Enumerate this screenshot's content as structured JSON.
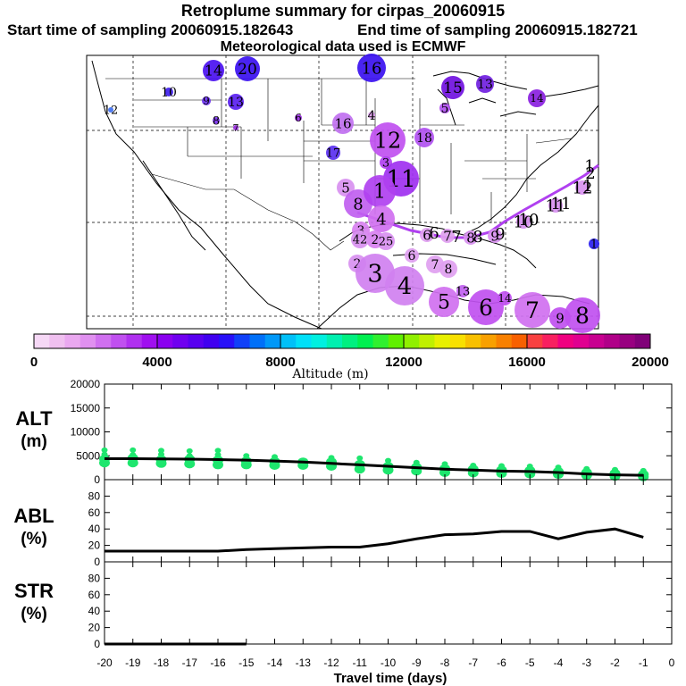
{
  "header": {
    "title": "Retroplume summary for cirpas_20060915",
    "start_label": "Start time of sampling 20060915.182643",
    "end_label": "End time of sampling 20060915.182721",
    "met_label": "Meteorological data used is ECMWF"
  },
  "colorbar": {
    "tick_labels": [
      "0",
      "4000",
      "8000",
      "12000",
      "16000",
      "20000"
    ],
    "title": "Altitude (m)",
    "min": 0,
    "max": 20000,
    "colors": [
      "#f6d8f6",
      "#f0c0f0",
      "#eaa8f0",
      "#e090f0",
      "#d070f0",
      "#c050f0",
      "#b030f0",
      "#a010f0",
      "#8a00f0",
      "#7000f0",
      "#5800f0",
      "#4000f0",
      "#2810f8",
      "#1040f8",
      "#0070f8",
      "#0098f8",
      "#00c0f8",
      "#00e0f8",
      "#00f0e0",
      "#00f0b0",
      "#00f080",
      "#00f050",
      "#30f030",
      "#60f000",
      "#90f000",
      "#c0f000",
      "#e8f000",
      "#f8e000",
      "#f8c000",
      "#f8a000",
      "#f88000",
      "#f86000",
      "#f84040",
      "#f82060",
      "#f00080",
      "#e00090",
      "#c80090",
      "#b00088",
      "#980080",
      "#800078"
    ],
    "color_low": "#f6d8f6",
    "color_mid": "#d070f0",
    "color_high": "#3000f0"
  },
  "map": {
    "plume_labels": [
      {
        "t": "14",
        "c": "#4a10f0"
      },
      {
        "t": "20",
        "c": "#3a10f0"
      },
      {
        "t": "16",
        "c": "#3a10f0"
      },
      {
        "t": "10",
        "c": "#4020f0"
      },
      {
        "t": "15",
        "c": "#7010e0"
      },
      {
        "t": "13",
        "c": "#7020e0"
      },
      {
        "t": "14",
        "c": "#8a20e0"
      },
      {
        "t": "12",
        "c": "#4070f0"
      },
      {
        "t": "9",
        "c": "#6a30f0"
      },
      {
        "t": "13",
        "c": "#5a20f0"
      },
      {
        "t": "8",
        "c": "#7a30f0"
      },
      {
        "t": "7",
        "c": "#9a30e0"
      },
      {
        "t": "6",
        "c": "#9a30e0"
      },
      {
        "t": "16",
        "c": "#c070f0"
      },
      {
        "t": "4",
        "c": "#e0a0f0"
      },
      {
        "t": "18",
        "c": "#b050f0"
      },
      {
        "t": "5",
        "c": "#b050f0"
      },
      {
        "t": "12",
        "c": "#c050f0"
      },
      {
        "t": "17",
        "c": "#5a30f0"
      },
      {
        "t": "3",
        "c": "#b040f0"
      },
      {
        "t": "11",
        "c": "#a030f0"
      },
      {
        "t": "5",
        "c": "#d890f0"
      },
      {
        "t": "8",
        "c": "#c060f0"
      },
      {
        "t": "1",
        "c": "#b040f0"
      },
      {
        "t": "4",
        "c": "#d070f0"
      },
      {
        "t": "3",
        "c": "#d880f0"
      },
      {
        "t": "2",
        "c": "#d880f0"
      },
      {
        "t": "6",
        "c": "#e0a0f0"
      },
      {
        "t": "7",
        "c": "#e0a0f0"
      },
      {
        "t": "8",
        "c": "#d890f0"
      },
      {
        "t": "9",
        "c": "#d890f0"
      },
      {
        "t": "10",
        "c": "#d890f0"
      },
      {
        "t": "11",
        "c": "#d890f0"
      },
      {
        "t": "12",
        "c": "#d890f0"
      },
      {
        "t": "42",
        "c": "#d890f0"
      },
      {
        "t": "25",
        "c": "#d890f0"
      },
      {
        "t": "2",
        "c": "#d890f0"
      },
      {
        "t": "3",
        "c": "#d080f0"
      },
      {
        "t": "4",
        "c": "#d080f0"
      },
      {
        "t": "6",
        "c": "#e0a0f0"
      },
      {
        "t": "7",
        "c": "#e0a0f0"
      },
      {
        "t": "8",
        "c": "#e0a0f0"
      },
      {
        "t": "5",
        "c": "#d070f0"
      },
      {
        "t": "13",
        "c": "#c060f0"
      },
      {
        "t": "6",
        "c": "#c050f0"
      },
      {
        "t": "14",
        "c": "#c050f0"
      },
      {
        "t": "7",
        "c": "#d070f0"
      },
      {
        "t": "9",
        "c": "#c050f0"
      },
      {
        "t": "8",
        "c": "#c050f0"
      },
      {
        "t": "1",
        "c": "#2a20f0"
      }
    ],
    "track_labels": [
      "6",
      "7",
      "8",
      "9",
      "10",
      "11",
      "1",
      "2",
      "1"
    ],
    "track_color": "#b040f0"
  },
  "panels": {
    "alt_label": "ALT",
    "alt_unit": "(m)",
    "abl_label": "ABL",
    "abl_unit": "(%)",
    "str_label": "STR",
    "str_unit": "(%)",
    "alt_ticks": [
      "20000",
      "15000",
      "10000",
      "5000",
      "0"
    ],
    "pct_ticks": [
      "80",
      "60",
      "40",
      "20",
      "0"
    ],
    "pct_ticks2": [
      "80",
      "60",
      "40",
      "20",
      "0"
    ]
  },
  "chart_data": {
    "type": "line",
    "title": "Retroplume summary for cirpas_20060915",
    "xlabel": "Travel time (days)",
    "x_tick_labels": [
      "-20",
      "-19",
      "-18",
      "-17",
      "-16",
      "-15",
      "-14",
      "-13",
      "-12",
      "-11",
      "-10",
      "-9",
      "-8",
      "-7",
      "-6",
      "-5",
      "-4",
      "-3",
      "-2",
      "-1",
      "0"
    ],
    "xlim": [
      -20,
      0
    ],
    "x": [
      -20,
      -19,
      -18,
      -17,
      -16,
      -15,
      -14,
      -13,
      -12,
      -11,
      -10,
      -9,
      -8,
      -7,
      -6,
      -5,
      -4,
      -3,
      -2,
      -1
    ],
    "alt_ylim": [
      0,
      20000
    ],
    "abl_ylim": [
      0,
      100
    ],
    "str_ylim": [
      0,
      100
    ],
    "series": [
      {
        "name": "ALT (m)",
        "values": [
          4400,
          4400,
          4350,
          4300,
          4200,
          4100,
          3900,
          3700,
          3400,
          3100,
          2800,
          2500,
          2200,
          2000,
          1800,
          1700,
          1500,
          1200,
          1000,
          900
        ]
      },
      {
        "name": "ABL (%)",
        "values": [
          13,
          13,
          13,
          13,
          13,
          15,
          16,
          17,
          18,
          18,
          22,
          28,
          33,
          34,
          37,
          37,
          28,
          36,
          40,
          30
        ]
      },
      {
        "name": "STR (%)",
        "values": [
          0,
          0,
          0,
          0,
          0,
          0,
          null,
          null,
          null,
          null,
          null,
          null,
          null,
          null,
          null,
          null,
          null,
          null,
          null,
          null
        ]
      }
    ],
    "alt_scatter": [
      {
        "x": -20,
        "values": [
          3500,
          4300,
          5300,
          6200
        ]
      },
      {
        "x": -19,
        "values": [
          3500,
          4500,
          5200,
          6200
        ]
      },
      {
        "x": -18,
        "values": [
          3400,
          4200,
          5300,
          6100
        ]
      },
      {
        "x": -17,
        "values": [
          3300,
          4300,
          5000,
          6000
        ]
      },
      {
        "x": -16,
        "values": [
          3100,
          4100,
          5200,
          6100
        ]
      },
      {
        "x": -15,
        "values": [
          3100,
          3900,
          5000
        ]
      },
      {
        "x": -14,
        "values": [
          3000,
          3800,
          4800
        ]
      },
      {
        "x": -13,
        "values": [
          3000,
          3700
        ]
      },
      {
        "x": -12,
        "values": [
          2800,
          3700,
          4600
        ]
      },
      {
        "x": -11,
        "values": [
          2200,
          3200,
          4500
        ]
      },
      {
        "x": -10,
        "values": [
          2000,
          2800,
          4000
        ]
      },
      {
        "x": -9,
        "values": [
          1800,
          2600,
          3600
        ]
      },
      {
        "x": -8,
        "values": [
          1500,
          2300,
          3300
        ]
      },
      {
        "x": -7,
        "values": [
          1400,
          2200,
          3000
        ]
      },
      {
        "x": -6,
        "values": [
          1300,
          2000,
          2900
        ]
      },
      {
        "x": -5,
        "values": [
          1200,
          1900,
          2800
        ]
      },
      {
        "x": -4,
        "values": [
          1100,
          1700,
          2600
        ]
      },
      {
        "x": -3,
        "values": [
          900,
          1500,
          2300
        ]
      },
      {
        "x": -2,
        "values": [
          700,
          1300,
          2100
        ]
      },
      {
        "x": -1,
        "values": [
          600,
          1100,
          1900
        ]
      }
    ],
    "scatter_color": "#1ee66e"
  }
}
